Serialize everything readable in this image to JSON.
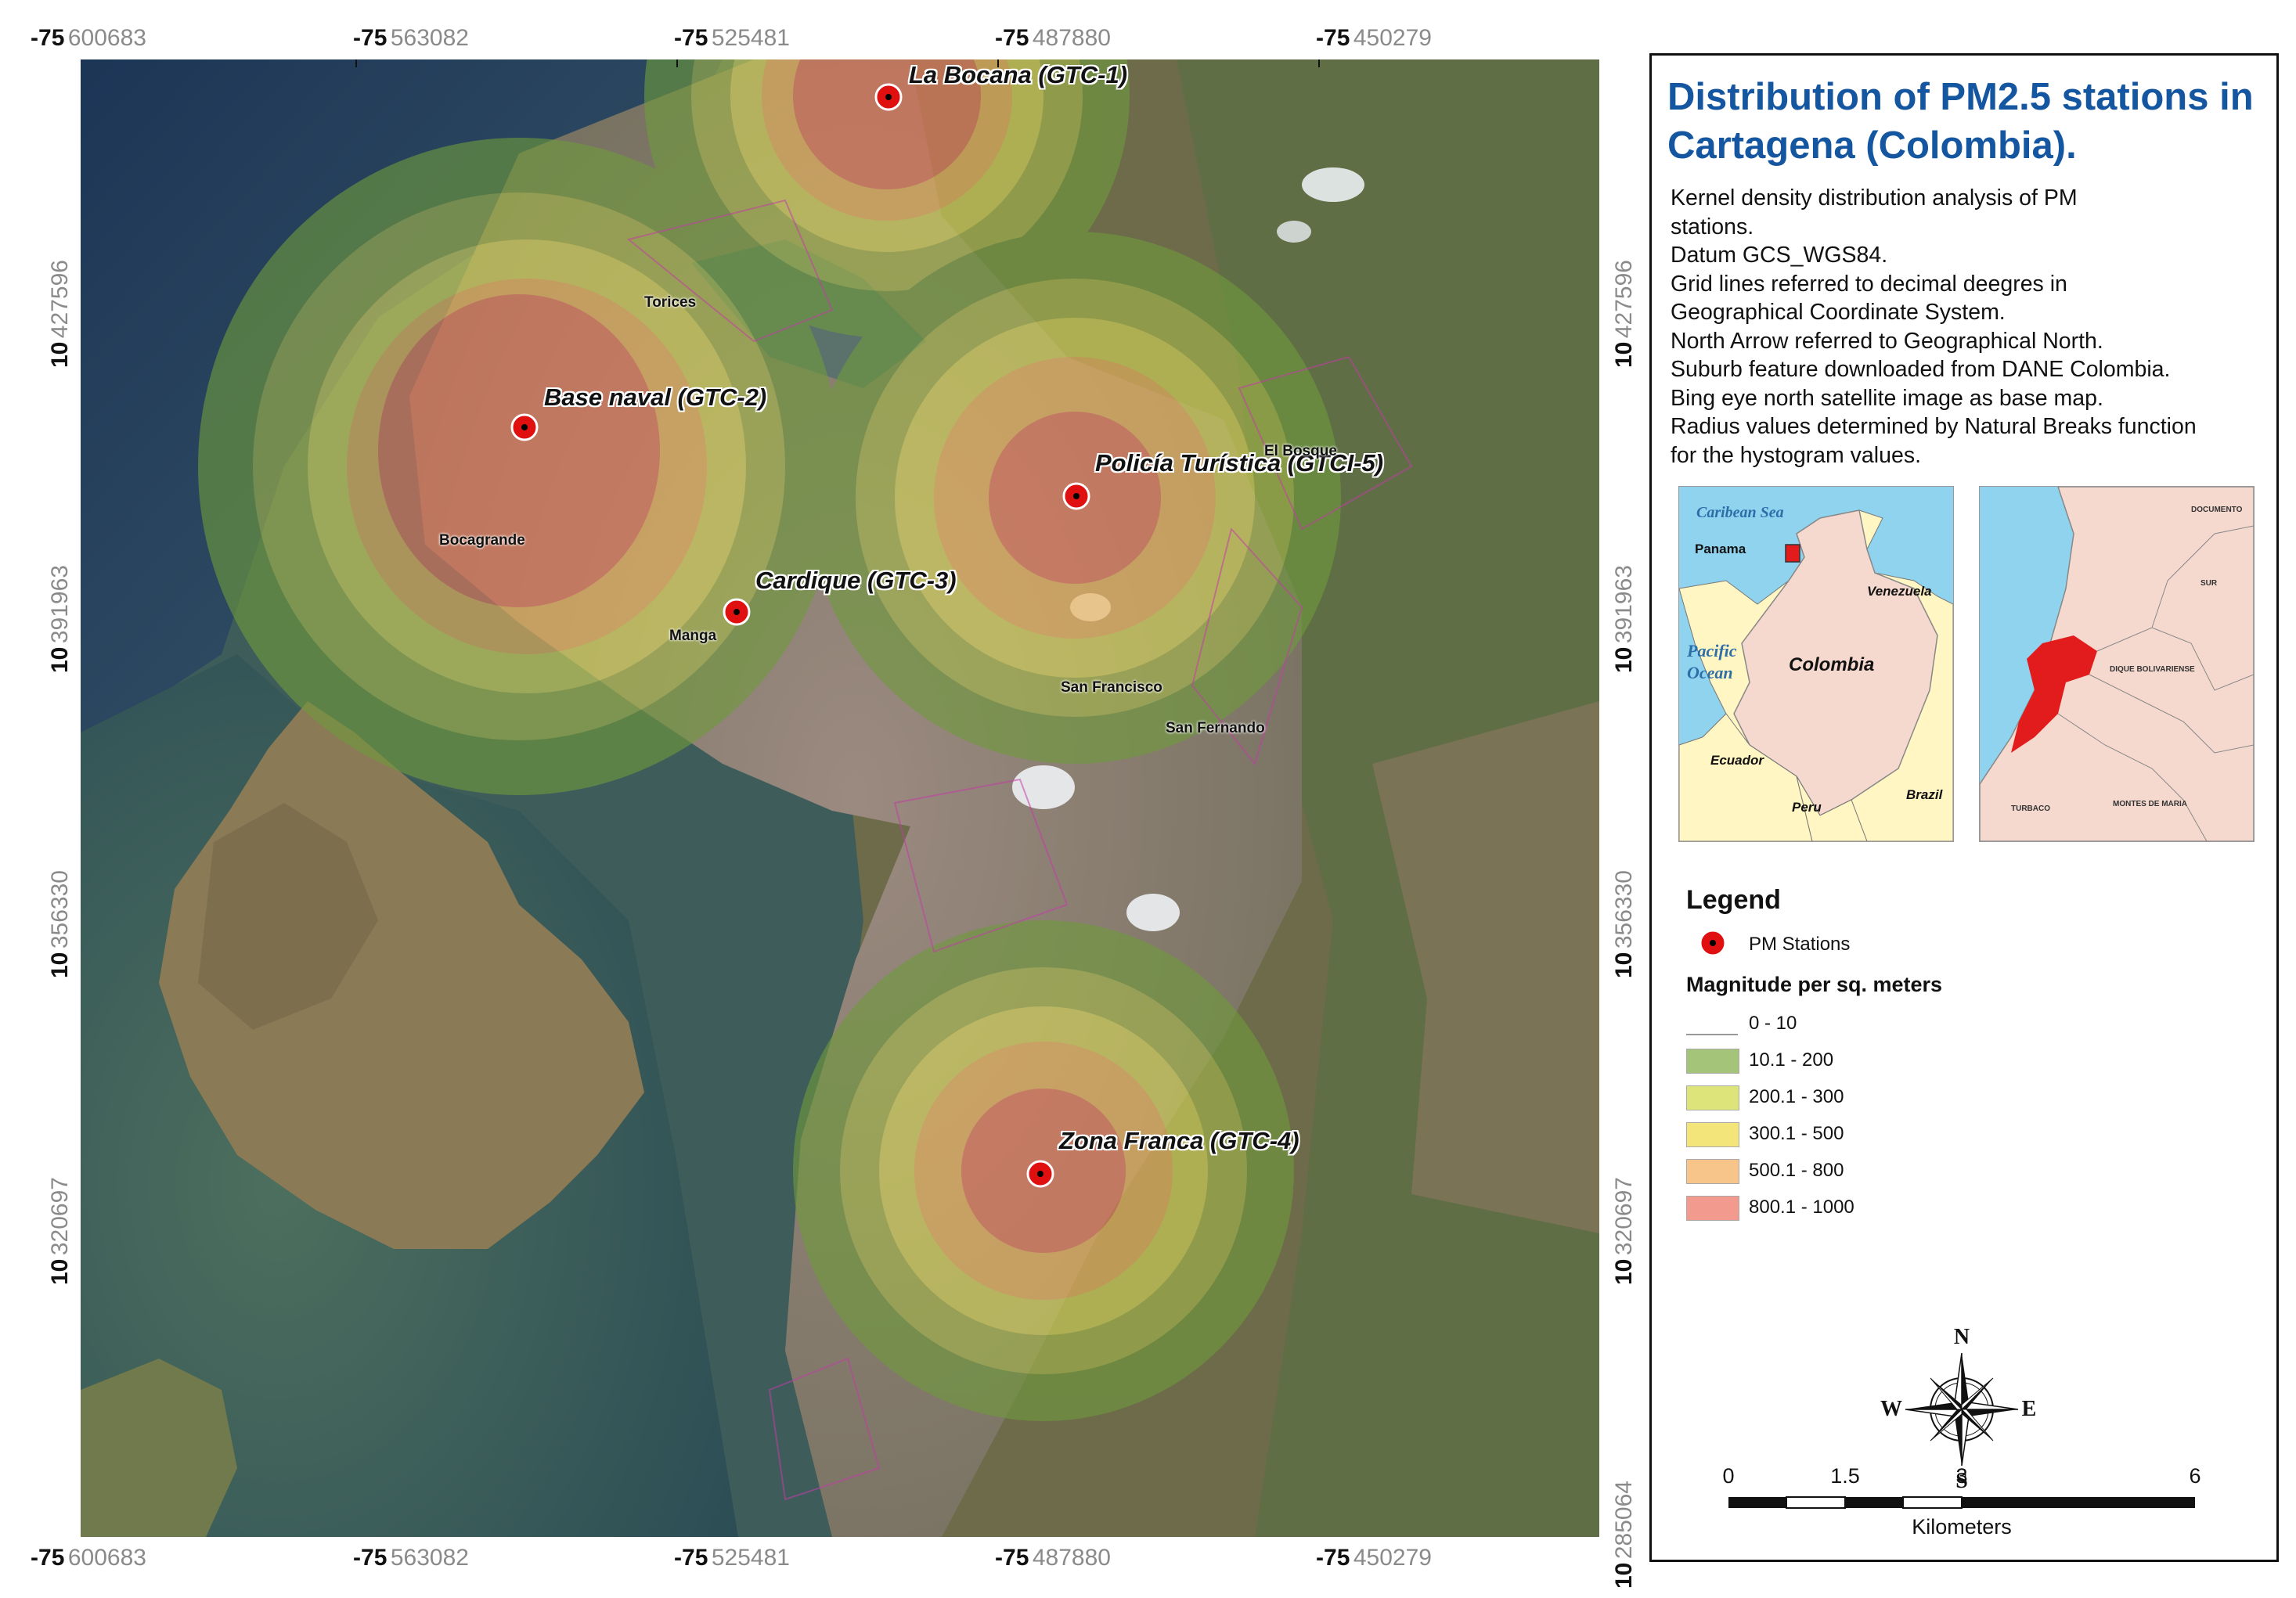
{
  "map": {
    "coords": {
      "lon_deg": "-75",
      "lon_decimals": [
        "600683",
        "563082",
        "525481",
        "487880",
        "450279"
      ],
      "lat_deg": "10",
      "lat_decimals_left": [
        "427596",
        "391963",
        "356330",
        "320697"
      ],
      "lat_decimals_right": [
        "427596",
        "391963",
        "356330",
        "320697",
        "285064"
      ]
    },
    "stations": [
      {
        "name": "La Bocana (GTC-1)"
      },
      {
        "name": "Base naval (GTC-2)"
      },
      {
        "name": "Cardique (GTC-3)"
      },
      {
        "name": "Zona Franca (GTC-4)"
      },
      {
        "name": "Policía Turística (GTCI-5)"
      }
    ],
    "places": [
      "Torices",
      "Bocagrande",
      "Manga",
      "San Francisco",
      "San Fernando",
      "El Bosque"
    ]
  },
  "panel": {
    "title": "Distribution of PM2.5 stations in Cartagena (Colombia).",
    "description": [
      "Kernel density distribution analysis of PM",
      "stations.",
      "Datum GCS_WGS84.",
      "Grid lines referred to decimal deegres in",
      "Geographical Coordinate System.",
      "North Arrow referred to Geographical North.",
      "Suburb feature downloaded from DANE Colombia.",
      "Bing eye north satellite image as  base map.",
      "Radius values determined by Natural Breaks function",
      "for the hystogram values."
    ],
    "inset_country": {
      "labels": [
        "Caribean Sea",
        "Panama",
        "Venezuela",
        "Pacific Ocean",
        "Colombia",
        "Ecuador",
        "Peru",
        "Brazil"
      ]
    },
    "inset_department": {
      "labels": [
        "DOCUMENTO",
        "SUR",
        "DIQUE BOLIVARIENSE",
        "TURBACO",
        "MONTES DE MARIA"
      ]
    },
    "legend": {
      "title": "Legend",
      "station_label": "PM Stations",
      "magnitude_title": "Magnitude per sq. meters",
      "classes": [
        {
          "label": "0 - 10",
          "color": "#ffffff"
        },
        {
          "label": "10.1 - 200",
          "color": "#a4c47a"
        },
        {
          "label": "200.1 - 300",
          "color": "#dde57a"
        },
        {
          "label": "300.1 - 500",
          "color": "#f3e57a"
        },
        {
          "label": "500.1 - 800",
          "color": "#f7c48a"
        },
        {
          "label": "800.1 - 1000",
          "color": "#f29a8e"
        }
      ]
    },
    "compass": {
      "n": "N",
      "s": "S",
      "e": "E",
      "w": "W"
    },
    "scale": {
      "ticks": [
        "0",
        "1.5",
        "3",
        "6"
      ],
      "unit": "Kilometers"
    }
  }
}
